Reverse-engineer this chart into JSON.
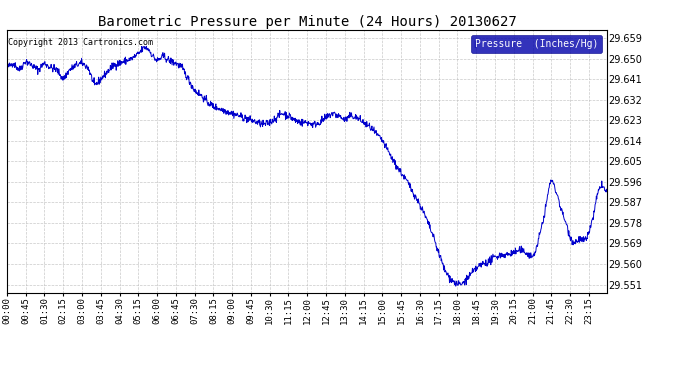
{
  "title": "Barometric Pressure per Minute (24 Hours) 20130627",
  "copyright": "Copyright 2013 Cartronics.com",
  "legend_label": "Pressure  (Inches/Hg)",
  "line_color": "#0000CC",
  "legend_bg": "#0000AA",
  "legend_text_color": "#FFFFFF",
  "background_color": "#FFFFFF",
  "grid_color": "#BBBBBB",
  "title_color": "#000000",
  "ylim": [
    29.5475,
    29.6625
  ],
  "yticks": [
    29.551,
    29.56,
    29.569,
    29.578,
    29.587,
    29.596,
    29.605,
    29.614,
    29.623,
    29.632,
    29.641,
    29.65,
    29.659
  ],
  "xtick_labels": [
    "00:00",
    "00:45",
    "01:30",
    "02:15",
    "03:00",
    "03:45",
    "04:30",
    "05:15",
    "06:00",
    "06:45",
    "07:30",
    "08:15",
    "09:00",
    "09:45",
    "10:30",
    "11:15",
    "12:00",
    "12:45",
    "13:30",
    "14:15",
    "15:00",
    "15:45",
    "16:30",
    "17:15",
    "18:00",
    "18:45",
    "19:30",
    "20:15",
    "21:00",
    "21:45",
    "22:30",
    "23:15"
  ]
}
